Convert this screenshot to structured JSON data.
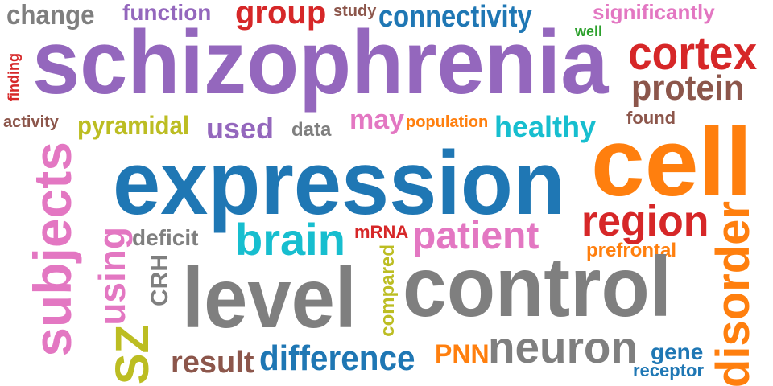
{
  "words": {
    "schizophrenia": {
      "text": "schizophrenia",
      "color": "#9467bd"
    },
    "expression": {
      "text": "expression",
      "color": "#1f77b4"
    },
    "cell": {
      "text": "cell",
      "color": "#ff7f0e"
    },
    "level": {
      "text": "level",
      "color": "#7f7f7f"
    },
    "control": {
      "text": "control",
      "color": "#7f7f7f"
    },
    "subjects": {
      "text": "subjects",
      "color": "#e377c2"
    },
    "cortex": {
      "text": "cortex",
      "color": "#d62728"
    },
    "region": {
      "text": "region",
      "color": "#d62728"
    },
    "disorder": {
      "text": "disorder",
      "color": "#ff7f0e"
    },
    "brain": {
      "text": "brain",
      "color": "#17becf"
    },
    "neuron": {
      "text": "neuron",
      "color": "#7f7f7f"
    },
    "protein": {
      "text": "protein",
      "color": "#8c564b"
    },
    "patient": {
      "text": "patient",
      "color": "#e377c2"
    },
    "connectivity": {
      "text": "connectivity",
      "color": "#1f77b4"
    },
    "group": {
      "text": "group",
      "color": "#d62728"
    },
    "difference": {
      "text": "difference",
      "color": "#1f77b4"
    },
    "SZ": {
      "text": "SZ",
      "color": "#bcbd22"
    },
    "using": {
      "text": "using",
      "color": "#e377c2"
    },
    "healthy": {
      "text": "healthy",
      "color": "#17becf"
    },
    "result": {
      "text": "result",
      "color": "#8c564b"
    },
    "used": {
      "text": "used",
      "color": "#9467bd"
    },
    "change": {
      "text": "change",
      "color": "#7f7f7f"
    },
    "may": {
      "text": "may",
      "color": "#e377c2"
    },
    "pyramidal": {
      "text": "pyramidal",
      "color": "#bcbd22"
    },
    "PNN": {
      "text": "PNN",
      "color": "#ff7f0e"
    },
    "function": {
      "text": "function",
      "color": "#9467bd"
    },
    "significantly": {
      "text": "significantly",
      "color": "#e377c2"
    },
    "gene": {
      "text": "gene",
      "color": "#1f77b4"
    },
    "CRH": {
      "text": "CRH",
      "color": "#7f7f7f"
    },
    "deficit": {
      "text": "deficit",
      "color": "#7f7f7f"
    },
    "data": {
      "text": "data",
      "color": "#7f7f7f"
    },
    "prefrontal": {
      "text": "prefrontal",
      "color": "#ff7f0e"
    },
    "compared": {
      "text": "compared",
      "color": "#bcbd22"
    },
    "found": {
      "text": "found",
      "color": "#8c564b"
    },
    "receptor": {
      "text": "receptor",
      "color": "#1f77b4"
    },
    "population": {
      "text": "population",
      "color": "#ff7f0e"
    },
    "mRNA": {
      "text": "mRNA",
      "color": "#d62728"
    },
    "activity": {
      "text": "activity",
      "color": "#8c564b"
    },
    "study": {
      "text": "study",
      "color": "#8c564b"
    },
    "finding": {
      "text": "finding",
      "color": "#d62728"
    },
    "well": {
      "text": "well",
      "color": "#2ca02c"
    }
  }
}
